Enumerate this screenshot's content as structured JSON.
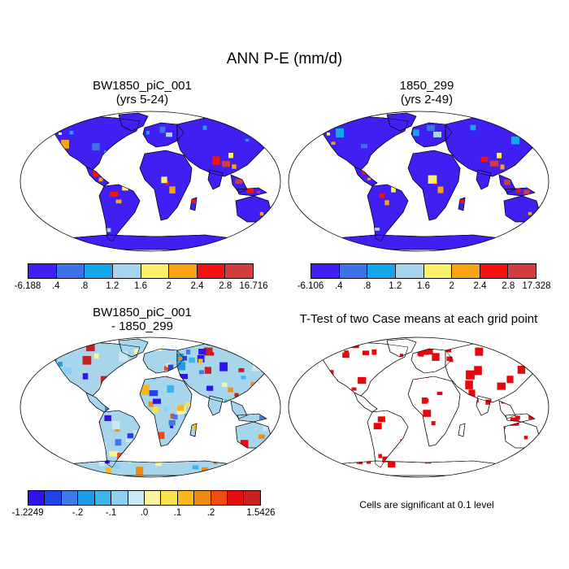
{
  "title": "ANN P-E (mm/d)",
  "panels": [
    {
      "title1": "BW1850_piC_001",
      "title2": "(yrs 5-24)",
      "fill": "#3f1ff2",
      "variant": "wet"
    },
    {
      "title1": "1850_299",
      "title2": "(yrs 2-49)",
      "fill": "#3f1ff2",
      "variant": "wet"
    },
    {
      "title1": "BW1850_piC_001",
      "title2": "- 1850_299",
      "fill": "#a7d6ec",
      "variant": "diff"
    },
    {
      "title1": "T-Test of two Case means at each grid point",
      "title2": "",
      "fill": "#ffffff",
      "variant": "ttest"
    }
  ],
  "colorbars": [
    {
      "colors": [
        "#3f1ff2",
        "#3d73e6",
        "#13a6e9",
        "#a7d6ec",
        "#fbf06a",
        "#f8a30f",
        "#f3130f",
        "#d13d3d"
      ],
      "labels": [
        "-6.188",
        ".4",
        ".8",
        "1.2",
        "1.6",
        "2",
        "2.4",
        "2.8",
        "16.716"
      ]
    },
    {
      "colors": [
        "#3f1ff2",
        "#3d73e6",
        "#13a6e9",
        "#a7d6ec",
        "#fbf06a",
        "#f8a30f",
        "#f3130f",
        "#d13d3d"
      ],
      "labels": [
        "-6.106",
        ".4",
        ".8",
        "1.2",
        "1.6",
        "2",
        "2.4",
        "2.8",
        "17.328"
      ]
    },
    {
      "colors": [
        "#3211f0",
        "#2043e8",
        "#3f78e8",
        "#1e9be8",
        "#3cb4ec",
        "#8bd0f0",
        "#c9e8f5",
        "#fbf3a0",
        "#fbe24a",
        "#f8b81a",
        "#f08a10",
        "#ef4b12",
        "#e60d0d",
        "#c82020"
      ],
      "labels": [
        "-1.2249",
        "-.2",
        "-.1",
        ".0",
        ".1",
        ".2",
        "1.5426"
      ]
    }
  ],
  "significance_note": "Cells are significant at 0.1 level",
  "accent_colors": {
    "wet": "#f3130f",
    "significant": "#e8060a"
  }
}
